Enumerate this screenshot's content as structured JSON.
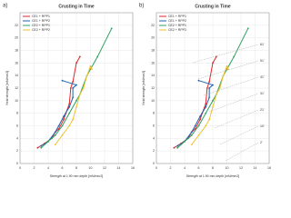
{
  "chart_data": [
    {
      "type": "line",
      "panel_label": "a)",
      "title": "Crusting in Time",
      "x_label": "Strength at 1.90 mm depth [mN/mm2]",
      "y_label": "Yield strength [mN/mm2]",
      "xlim": [
        0,
        16
      ],
      "xticks": [
        0,
        2,
        4,
        6,
        8,
        10,
        12,
        14,
        16
      ],
      "ylim": [
        0,
        24
      ],
      "yticks": [
        0,
        2,
        4,
        6,
        8,
        10,
        12,
        14,
        16,
        18,
        20,
        22
      ],
      "grid": true,
      "legend": "upper-left",
      "series": [
        {
          "name": "CE1 + RPP1",
          "color": "#e0262b",
          "x": [
            2.5,
            3.5,
            4.5,
            5,
            5.5,
            6.2,
            6.5,
            7,
            7.2,
            7.5,
            8,
            8.5
          ],
          "values": [
            2.5,
            3.2,
            4,
            5,
            5.5,
            7,
            8,
            9.5,
            12,
            13,
            16,
            17
          ]
        },
        {
          "name": "CE1 + RPP2",
          "color": "#1f5fb0",
          "x": [
            3,
            4,
            5,
            5.5,
            6.2,
            7,
            7.5,
            7.5,
            8,
            6
          ],
          "values": [
            2.8,
            3.5,
            5,
            6,
            7.5,
            9,
            10.5,
            12,
            12.5,
            13.2
          ]
        },
        {
          "name": "CE2 + RPP1",
          "color": "#2ca05a",
          "x": [
            3,
            4,
            5,
            6,
            7,
            8,
            8.5,
            9.5,
            11,
            13
          ],
          "values": [
            2.5,
            3.5,
            4.5,
            6,
            8,
            10,
            11,
            14,
            17,
            21.5
          ]
        },
        {
          "name": "CE2 + RPP2",
          "color": "#f2c12e",
          "x": [
            5,
            6,
            7,
            7.5,
            8,
            8.5,
            9,
            9.5,
            10,
            10.2
          ],
          "values": [
            3,
            4.5,
            6,
            7,
            9,
            11,
            12,
            14,
            15.5,
            15
          ]
        }
      ]
    },
    {
      "type": "line",
      "panel_label": "b)",
      "title": "Crusting in Time",
      "x_label": "Strength at 1.90 mm depth [mN/mm2]",
      "y_label": "Yield strength [mN/mm2]",
      "xlim": [
        0,
        16
      ],
      "xticks": [
        0,
        2,
        4,
        6,
        8,
        10,
        12,
        14,
        16
      ],
      "ylim": [
        0,
        24
      ],
      "yticks": [
        0,
        2,
        4,
        6,
        8,
        10,
        12,
        14,
        16,
        18,
        20,
        22
      ],
      "grid": true,
      "legend": "upper-left",
      "annotations": [
        "61'",
        "51'",
        "41'",
        "31'",
        "21'",
        "10'",
        "2'"
      ],
      "series": [
        {
          "name": "CE1 + RPP1",
          "color": "#e0262b",
          "x": [
            2.5,
            3.5,
            4.5,
            5,
            5.5,
            6.2,
            6.5,
            7,
            7.2,
            7.5,
            8,
            8.5
          ],
          "values": [
            2.5,
            3.2,
            4,
            5,
            5.5,
            7,
            8,
            9.5,
            12,
            13,
            16,
            17
          ]
        },
        {
          "name": "CE1 + RPP2",
          "color": "#1f5fb0",
          "x": [
            3,
            4,
            5,
            5.5,
            6.2,
            7,
            7.5,
            7.5,
            8,
            6
          ],
          "values": [
            2.8,
            3.5,
            5,
            6,
            7.5,
            9,
            10.5,
            12,
            12.5,
            13.2
          ]
        },
        {
          "name": "CE2 + RPP1",
          "color": "#2ca05a",
          "x": [
            3,
            4,
            5,
            6,
            7,
            8,
            8.5,
            9.5,
            11,
            13
          ],
          "values": [
            2.5,
            3.5,
            4.5,
            6,
            8,
            10,
            11,
            14,
            17,
            21.5
          ]
        },
        {
          "name": "CE2 + RPP2",
          "color": "#f2c12e",
          "x": [
            5,
            6,
            7,
            7.5,
            8,
            8.5,
            9,
            9.5,
            10,
            10.2
          ],
          "values": [
            3,
            4.5,
            6,
            7,
            9,
            11,
            12,
            14,
            15.5,
            15
          ]
        }
      ]
    }
  ]
}
